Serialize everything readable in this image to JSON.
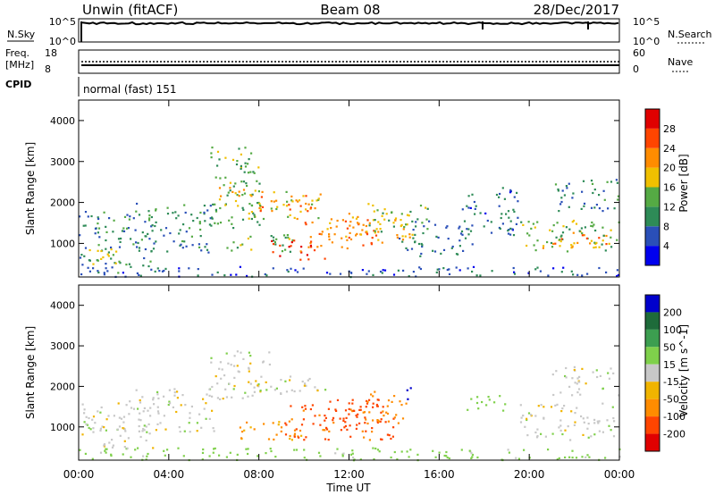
{
  "header": {
    "title": "Unwin (fitACF)",
    "beam": "Beam 08",
    "date": "28/Dec/2017"
  },
  "status_panels": {
    "nsky_label": "N.Sky",
    "nsky_ticks": [
      "10^5",
      "10^0"
    ],
    "nsearch_label": "N.Search",
    "nsearch_ticks": [
      "10^5",
      "10^0"
    ],
    "freq_label": "Freq.",
    "freq_unit": "[MHz]",
    "freq_ticks": [
      "18",
      "8"
    ],
    "nave_label": "Nave",
    "nave_ticks": [
      "60",
      "0"
    ],
    "cpid_label": "CPID",
    "cpid_value": "normal (fast) 151"
  },
  "chart_data": [
    {
      "type": "heatmap",
      "name": "power",
      "ylabel": "Slant Range [km]",
      "xlabel": "",
      "ylim": [
        180,
        4500
      ],
      "yticks": [
        "1000",
        "2000",
        "3000",
        "4000"
      ],
      "ytick_values": [
        1000,
        2000,
        3000,
        4000
      ],
      "colorbar_label": "Power [dB]",
      "colorbar_ticks": [
        "4",
        "8",
        "12",
        "16",
        "20",
        "24",
        "28"
      ],
      "colorbar_tick_values": [
        4,
        8,
        12,
        16,
        20,
        24,
        28
      ],
      "colorbar_range": [
        0,
        32
      ],
      "colors": [
        "#0000ee",
        "#2a4fb8",
        "#2e8b57",
        "#55aa44",
        "#f0c000",
        "#ff8c00",
        "#ff4500",
        "#e00000"
      ],
      "echo_regions": [
        {
          "t0": 0.0,
          "t1": 3.5,
          "r0": 300,
          "r1": 1800,
          "v": 9
        },
        {
          "t0": 0.3,
          "t1": 1.8,
          "r0": 400,
          "r1": 900,
          "v": 16
        },
        {
          "t0": 2.5,
          "t1": 6.0,
          "r0": 800,
          "r1": 2000,
          "v": 10
        },
        {
          "t0": 5.8,
          "t1": 8.0,
          "r0": 1400,
          "r1": 3400,
          "v": 13
        },
        {
          "t0": 6.2,
          "t1": 8.2,
          "r0": 1900,
          "r1": 2400,
          "v": 20
        },
        {
          "t0": 7.5,
          "t1": 10.8,
          "r0": 1600,
          "r1": 2300,
          "v": 18
        },
        {
          "t0": 8.0,
          "t1": 10.5,
          "r0": 1800,
          "r1": 2200,
          "v": 24
        },
        {
          "t0": 6.5,
          "t1": 9.5,
          "r0": 800,
          "r1": 1300,
          "v": 14
        },
        {
          "t0": 8.5,
          "t1": 11.0,
          "r0": 600,
          "r1": 1100,
          "v": 27
        },
        {
          "t0": 9.8,
          "t1": 13.5,
          "r0": 900,
          "r1": 1600,
          "v": 24
        },
        {
          "t0": 11.0,
          "t1": 14.8,
          "r0": 1100,
          "r1": 1800,
          "v": 20
        },
        {
          "t0": 12.8,
          "t1": 15.5,
          "r0": 1300,
          "r1": 2000,
          "v": 14
        },
        {
          "t0": 14.2,
          "t1": 17.5,
          "r0": 700,
          "r1": 1600,
          "v": 8
        },
        {
          "t0": 17.0,
          "t1": 19.5,
          "r0": 1200,
          "r1": 2400,
          "v": 7
        },
        {
          "t0": 19.5,
          "t1": 24.0,
          "r0": 800,
          "r1": 1600,
          "v": 14
        },
        {
          "t0": 20.0,
          "t1": 23.8,
          "r0": 900,
          "r1": 1300,
          "v": 22
        },
        {
          "t0": 21.0,
          "t1": 24.0,
          "r0": 1800,
          "r1": 2600,
          "v": 9
        },
        {
          "t0": 0.0,
          "t1": 24.0,
          "r0": 200,
          "r1": 450,
          "v": 6
        }
      ]
    },
    {
      "type": "heatmap",
      "name": "velocity",
      "ylabel": "Slant Range [km]",
      "xlabel": "Time UT",
      "ylim": [
        180,
        4500
      ],
      "yticks": [
        "1000",
        "2000",
        "3000",
        "4000"
      ],
      "ytick_values": [
        1000,
        2000,
        3000,
        4000
      ],
      "xticks": [
        "00:00",
        "04:00",
        "08:00",
        "12:00",
        "16:00",
        "20:00",
        "00:00"
      ],
      "xlim": [
        0,
        24
      ],
      "colorbar_label": "Velocity [m s^-1]",
      "colorbar_ticks": [
        "200",
        "100",
        "50",
        "15",
        "-15",
        "-50",
        "-100",
        "-200"
      ],
      "colorbar_tick_values": [
        200,
        100,
        50,
        15,
        -15,
        -50,
        -100,
        -200
      ],
      "colors": [
        "#0000cc",
        "#1e6b3a",
        "#3c9e50",
        "#7fd04b",
        "#c8c8c8",
        "#f0b400",
        "#ff8c00",
        "#ff4500",
        "#e00000"
      ],
      "echo_regions": [
        {
          "t0": 0.0,
          "t1": 3.5,
          "r0": 500,
          "r1": 1700,
          "v": 0
        },
        {
          "t0": 2.5,
          "t1": 6.0,
          "r0": 900,
          "r1": 2000,
          "v": 0
        },
        {
          "t0": 5.8,
          "t1": 8.5,
          "r0": 1700,
          "r1": 2900,
          "v": 0
        },
        {
          "t0": 7.5,
          "t1": 11.0,
          "r0": 1800,
          "r1": 2300,
          "v": 0
        },
        {
          "t0": 7.0,
          "t1": 10.0,
          "r0": 700,
          "r1": 1200,
          "v": -60
        },
        {
          "t0": 9.0,
          "t1": 14.0,
          "r0": 700,
          "r1": 1600,
          "v": -110
        },
        {
          "t0": 11.0,
          "t1": 13.5,
          "r0": 900,
          "r1": 1700,
          "v": -180
        },
        {
          "t0": 12.5,
          "t1": 14.5,
          "r0": 1100,
          "r1": 1900,
          "v": -70
        },
        {
          "t0": 14.3,
          "t1": 14.9,
          "r0": 1700,
          "r1": 2050,
          "v": 190
        },
        {
          "t0": 17.0,
          "t1": 19.0,
          "r0": 1400,
          "r1": 1800,
          "v": 35
        },
        {
          "t0": 19.5,
          "t1": 24.0,
          "r0": 700,
          "r1": 1600,
          "v": 0
        },
        {
          "t0": 21.0,
          "t1": 24.0,
          "r0": 1800,
          "r1": 2500,
          "v": 0
        },
        {
          "t0": 0.0,
          "t1": 24.0,
          "r0": 200,
          "r1": 500,
          "v": 30
        }
      ]
    }
  ]
}
